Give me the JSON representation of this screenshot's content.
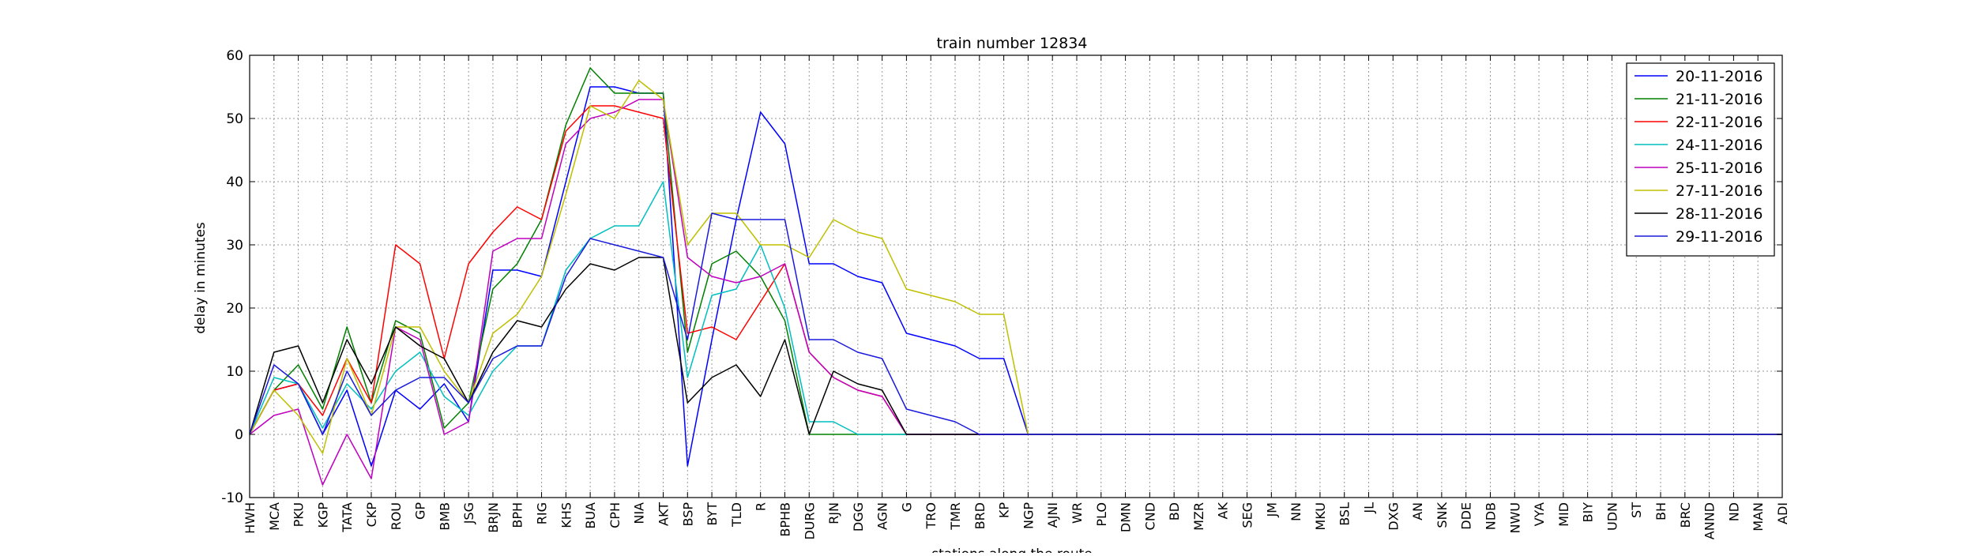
{
  "chart_data": {
    "type": "line",
    "title": "train number 12834",
    "xlabel": "stations along the route",
    "ylabel": "delay in minutes",
    "ylim": [
      -10,
      60
    ],
    "yticks": [
      -10,
      0,
      10,
      20,
      30,
      40,
      50,
      60
    ],
    "grid": true,
    "legend_position": "top-right",
    "categories": [
      "HWH",
      "MCA",
      "PKU",
      "KGP",
      "TATA",
      "CKP",
      "ROU",
      "GP",
      "BMB",
      "JSG",
      "BRJN",
      "BPH",
      "RIG",
      "KHS",
      "BUA",
      "CPH",
      "NIA",
      "AKT",
      "BSP",
      "BYT",
      "TLD",
      "R",
      "BPHB",
      "DURG",
      "RJN",
      "DGG",
      "AGN",
      "G",
      "TRO",
      "TMR",
      "BRD",
      "KP",
      "NGP",
      "AJNI",
      "WR",
      "PLO",
      "DMN",
      "CND",
      "BD",
      "MZR",
      "AK",
      "SEG",
      "JM",
      "NN",
      "MKU",
      "BSL",
      "JL",
      "DXG",
      "AN",
      "SNK",
      "DDE",
      "NDB",
      "NWU",
      "VYA",
      "MID",
      "BIY",
      "UDN",
      "ST",
      "BH",
      "BRC",
      "ANND",
      "ND",
      "MAN",
      "ADI"
    ],
    "series": [
      {
        "name": "20-11-2016",
        "color": "#0000ff",
        "values": [
          0,
          7,
          8,
          0,
          7,
          -5,
          7,
          4,
          8,
          2,
          26,
          26,
          25,
          40,
          55,
          55,
          54,
          54,
          -5,
          15,
          34,
          51,
          46,
          27,
          27,
          25,
          24,
          16,
          15,
          14,
          12,
          12,
          0,
          0,
          0,
          0,
          0,
          0,
          0,
          0,
          0,
          0,
          0,
          0,
          0,
          0,
          0,
          0,
          0,
          0,
          0,
          0,
          0,
          0,
          0,
          0,
          0,
          0,
          0,
          0,
          0,
          0,
          0,
          0
        ]
      },
      {
        "name": "21-11-2016",
        "color": "#008000",
        "values": [
          0,
          7,
          11,
          4,
          17,
          5,
          18,
          16,
          1,
          5,
          23,
          27,
          34,
          49,
          58,
          54,
          54,
          54,
          13,
          27,
          29,
          25,
          18,
          0,
          0,
          0,
          0,
          0,
          0,
          0,
          0,
          0,
          0,
          0,
          0,
          0,
          0,
          0,
          0,
          0,
          0,
          0,
          0,
          0,
          0,
          0,
          0,
          0,
          0,
          0,
          0,
          0,
          0,
          0,
          0,
          0,
          0,
          0,
          0,
          0,
          0,
          0,
          0,
          0
        ]
      },
      {
        "name": "22-11-2016",
        "color": "#ff0000",
        "values": [
          0,
          7,
          8,
          3,
          12,
          5,
          30,
          27,
          12,
          27,
          32,
          36,
          34,
          48,
          52,
          52,
          51,
          50,
          16,
          17,
          15,
          21,
          27,
          13,
          9,
          7,
          6,
          0,
          0,
          0,
          0,
          0,
          0,
          0,
          0,
          0,
          0,
          0,
          0,
          0,
          0,
          0,
          0,
          0,
          0,
          0,
          0,
          0,
          0,
          0,
          0,
          0,
          0,
          0,
          0,
          0,
          0,
          0,
          0,
          0,
          0,
          0,
          0,
          0
        ]
      },
      {
        "name": "24-11-2016",
        "color": "#00bfbf",
        "values": [
          0,
          9,
          8,
          1,
          8,
          4,
          10,
          13,
          6,
          3,
          10,
          14,
          14,
          26,
          31,
          33,
          33,
          40,
          9,
          22,
          23,
          30,
          20,
          2,
          2,
          0,
          0,
          0,
          0,
          0,
          0,
          0,
          0,
          0,
          0,
          0,
          0,
          0,
          0,
          0,
          0,
          0,
          0,
          0,
          0,
          0,
          0,
          0,
          0,
          0,
          0,
          0,
          0,
          0,
          0,
          0,
          0,
          0,
          0,
          0,
          0,
          0,
          0,
          0
        ]
      },
      {
        "name": "25-11-2016",
        "color": "#bf00bf",
        "values": [
          0,
          3,
          4,
          -8,
          0,
          -7,
          17,
          15,
          0,
          2,
          29,
          31,
          31,
          46,
          50,
          51,
          53,
          53,
          28,
          25,
          24,
          25,
          27,
          13,
          9,
          7,
          6,
          0,
          0,
          0,
          0,
          0,
          0,
          0,
          0,
          0,
          0,
          0,
          0,
          0,
          0,
          0,
          0,
          0,
          0,
          0,
          0,
          0,
          0,
          0,
          0,
          0,
          0,
          0,
          0,
          0,
          0,
          0,
          0,
          0,
          0,
          0,
          0,
          0
        ]
      },
      {
        "name": "27-11-2016",
        "color": "#bfbf00",
        "values": [
          0,
          7,
          3,
          -3,
          12,
          3,
          17,
          17,
          10,
          5,
          16,
          19,
          25,
          38,
          52,
          50,
          56,
          53,
          30,
          35,
          35,
          30,
          30,
          28,
          34,
          32,
          31,
          23,
          22,
          21,
          19,
          19,
          0,
          0,
          0,
          0,
          0,
          0,
          0,
          0,
          0,
          0,
          0,
          0,
          0,
          0,
          0,
          0,
          0,
          0,
          0,
          0,
          0,
          0,
          0,
          0,
          0,
          0,
          0,
          0,
          0,
          0,
          0,
          0
        ]
      },
      {
        "name": "28-11-2016",
        "color": "#000000",
        "values": [
          0,
          13,
          14,
          5,
          15,
          8,
          17,
          14,
          12,
          5,
          13,
          18,
          17,
          23,
          27,
          26,
          28,
          28,
          5,
          9,
          11,
          6,
          15,
          0,
          10,
          8,
          7,
          0,
          0,
          0,
          0,
          0,
          0,
          0,
          0,
          0,
          0,
          0,
          0,
          0,
          0,
          0,
          0,
          0,
          0,
          0,
          0,
          0,
          0,
          0,
          0,
          0,
          0,
          0,
          0,
          0,
          0,
          0,
          0,
          0,
          0,
          0,
          0,
          0
        ]
      },
      {
        "name": "29-11-2016",
        "color": "#1a1adc",
        "values": [
          0,
          11,
          8,
          0,
          10,
          3,
          7,
          9,
          9,
          5,
          12,
          14,
          14,
          25,
          31,
          30,
          29,
          28,
          15,
          35,
          34,
          34,
          34,
          15,
          15,
          13,
          12,
          4,
          3,
          2,
          0,
          0,
          0,
          0,
          0,
          0,
          0,
          0,
          0,
          0,
          0,
          0,
          0,
          0,
          0,
          0,
          0,
          0,
          0,
          0,
          0,
          0,
          0,
          0,
          0,
          0,
          0,
          0,
          0,
          0,
          0,
          0,
          0,
          0
        ]
      }
    ]
  }
}
